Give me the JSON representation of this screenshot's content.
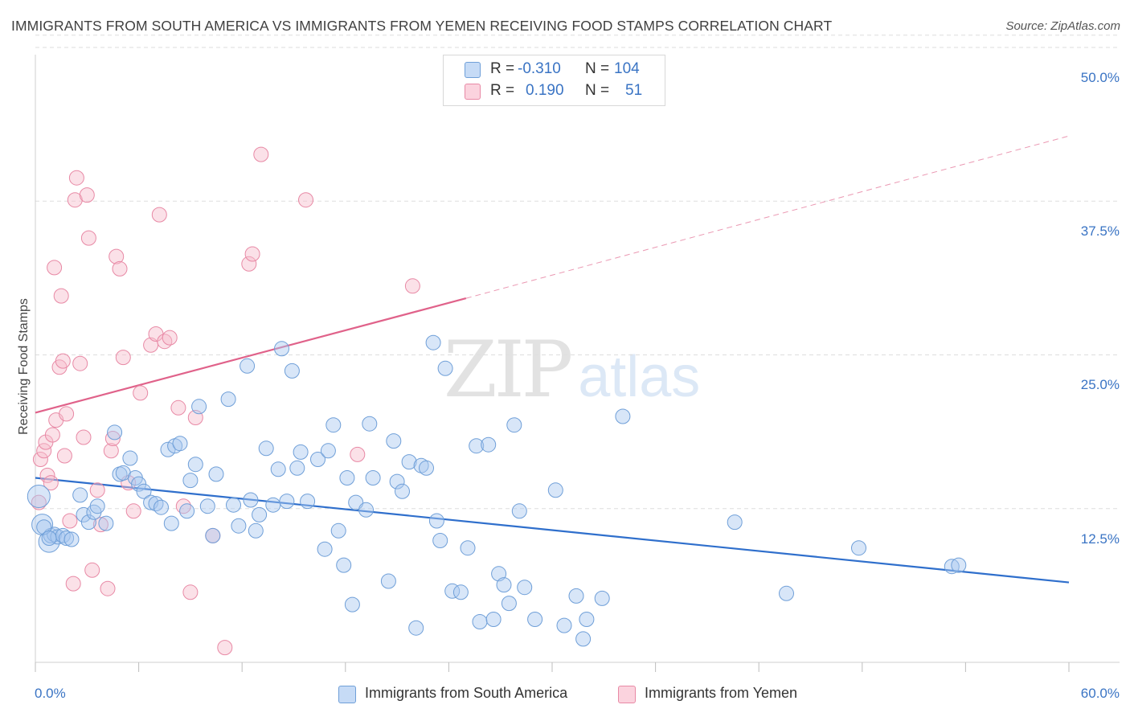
{
  "title": "IMMIGRANTS FROM SOUTH AMERICA VS IMMIGRANTS FROM YEMEN RECEIVING FOOD STAMPS CORRELATION CHART",
  "source": "Source: ZipAtlas.com",
  "watermark": {
    "zip": "ZIP",
    "atlas": "atlas"
  },
  "legend": {
    "rows": [
      {
        "r_label": "R =",
        "r_value": "-0.310",
        "n_label": "N =",
        "n_value": "104",
        "color": "#a9c8f0"
      },
      {
        "r_label": "R =",
        "r_value": "0.190",
        "n_label": "N =",
        "n_value": "51",
        "color": "#f7bccb"
      }
    ]
  },
  "bottom_legend": [
    {
      "label": "Immigrants from South America",
      "color": "#a9c8f0"
    },
    {
      "label": "Immigrants from Yemen",
      "color": "#f7bccb"
    }
  ],
  "chart_data": {
    "type": "scatter",
    "title": "IMMIGRANTS FROM SOUTH AMERICA VS IMMIGRANTS FROM YEMEN RECEIVING FOOD STAMPS CORRELATION CHART",
    "xlabel": "",
    "ylabel": "Receiving Food Stamps",
    "xlim": [
      0,
      60
    ],
    "ylim": [
      0,
      51
    ],
    "x_tick_labels": [
      "0.0%",
      "60.0%"
    ],
    "y_tick_labels": [
      "12.5%",
      "25.0%",
      "37.5%",
      "50.0%"
    ],
    "y_ticks": [
      12.5,
      25.0,
      37.5,
      50.0
    ],
    "grid": true,
    "legend_position": "top-center",
    "colors": {
      "blue_point": "#a9c8f0",
      "blue_edge": "#6f9fd8",
      "blue_line": "#2f6fcc",
      "pink_point": "#f7bccb",
      "pink_edge": "#e889a5",
      "pink_line": "#e0628a",
      "tick_text": "#3a74c4"
    },
    "series": [
      {
        "name": "Immigrants from South America",
        "r": -0.31,
        "n": 104,
        "trend": {
          "x": [
            0,
            60
          ],
          "y": [
            15.0,
            6.5
          ],
          "style": "solid"
        },
        "points": [
          [
            0.2,
            13.5
          ],
          [
            0.4,
            11.2
          ],
          [
            0.8,
            9.8
          ],
          [
            0.9,
            10.3
          ],
          [
            1.1,
            10.4
          ],
          [
            1.3,
            10.2
          ],
          [
            1.6,
            10.3
          ],
          [
            1.8,
            10.1
          ],
          [
            2.1,
            10.0
          ],
          [
            2.6,
            13.6
          ],
          [
            2.8,
            12.0
          ],
          [
            3.1,
            11.4
          ],
          [
            3.4,
            12.2
          ],
          [
            3.6,
            12.7
          ],
          [
            4.1,
            11.3
          ],
          [
            4.6,
            18.7
          ],
          [
            4.9,
            15.3
          ],
          [
            5.1,
            15.4
          ],
          [
            5.5,
            16.6
          ],
          [
            5.8,
            15.0
          ],
          [
            6.0,
            14.5
          ],
          [
            6.3,
            13.9
          ],
          [
            6.7,
            13.0
          ],
          [
            7.0,
            12.9
          ],
          [
            7.3,
            12.6
          ],
          [
            7.7,
            17.3
          ],
          [
            7.9,
            11.3
          ],
          [
            8.1,
            17.6
          ],
          [
            8.4,
            17.8
          ],
          [
            8.8,
            12.3
          ],
          [
            9.0,
            14.8
          ],
          [
            9.3,
            16.1
          ],
          [
            9.5,
            20.8
          ],
          [
            10.0,
            12.7
          ],
          [
            10.3,
            10.3
          ],
          [
            10.5,
            15.3
          ],
          [
            11.2,
            21.4
          ],
          [
            11.5,
            12.8
          ],
          [
            11.8,
            11.1
          ],
          [
            12.3,
            24.1
          ],
          [
            12.5,
            13.2
          ],
          [
            12.8,
            10.7
          ],
          [
            13.0,
            12.0
          ],
          [
            13.4,
            17.4
          ],
          [
            13.8,
            12.8
          ],
          [
            14.1,
            15.7
          ],
          [
            14.3,
            25.5
          ],
          [
            14.6,
            13.1
          ],
          [
            14.9,
            23.7
          ],
          [
            15.2,
            15.8
          ],
          [
            15.4,
            17.1
          ],
          [
            15.8,
            13.1
          ],
          [
            16.4,
            16.5
          ],
          [
            16.8,
            9.2
          ],
          [
            17.0,
            17.2
          ],
          [
            17.3,
            19.3
          ],
          [
            17.6,
            10.7
          ],
          [
            17.9,
            7.9
          ],
          [
            18.1,
            15.0
          ],
          [
            18.4,
            4.7
          ],
          [
            18.6,
            13.0
          ],
          [
            19.2,
            12.4
          ],
          [
            19.4,
            19.4
          ],
          [
            19.6,
            15.0
          ],
          [
            20.5,
            6.6
          ],
          [
            20.8,
            18.0
          ],
          [
            21.0,
            14.7
          ],
          [
            21.3,
            13.9
          ],
          [
            21.7,
            16.3
          ],
          [
            22.1,
            2.8
          ],
          [
            22.4,
            16.0
          ],
          [
            22.7,
            15.8
          ],
          [
            23.1,
            26.0
          ],
          [
            23.3,
            11.5
          ],
          [
            23.5,
            9.9
          ],
          [
            23.8,
            23.9
          ],
          [
            24.2,
            5.8
          ],
          [
            24.7,
            5.7
          ],
          [
            25.1,
            9.3
          ],
          [
            25.6,
            17.6
          ],
          [
            25.8,
            3.3
          ],
          [
            26.3,
            17.7
          ],
          [
            26.6,
            3.5
          ],
          [
            26.9,
            7.2
          ],
          [
            27.2,
            6.3
          ],
          [
            27.5,
            4.8
          ],
          [
            27.8,
            19.3
          ],
          [
            28.1,
            12.3
          ],
          [
            28.4,
            6.1
          ],
          [
            29.0,
            3.5
          ],
          [
            30.2,
            14.0
          ],
          [
            30.7,
            3.0
          ],
          [
            31.4,
            5.4
          ],
          [
            31.8,
            1.9
          ],
          [
            32.0,
            3.5
          ],
          [
            32.9,
            5.2
          ],
          [
            34.1,
            20.0
          ],
          [
            40.6,
            11.4
          ],
          [
            43.6,
            5.6
          ],
          [
            47.8,
            9.3
          ],
          [
            53.2,
            7.8
          ],
          [
            53.6,
            7.9
          ],
          [
            0.5,
            11.0
          ],
          [
            0.8,
            10.1
          ]
        ]
      },
      {
        "name": "Immigrants from Yemen",
        "r": 0.19,
        "n": 51,
        "trend": {
          "x": [
            0,
            25
          ],
          "y": [
            20.3,
            29.6
          ],
          "style": "solid",
          "extended_to": [
            60,
            42.8
          ],
          "extended_style": "dashed"
        },
        "points": [
          [
            0.2,
            13.0
          ],
          [
            0.3,
            16.5
          ],
          [
            0.5,
            17.2
          ],
          [
            0.6,
            17.9
          ],
          [
            0.7,
            15.2
          ],
          [
            0.9,
            14.6
          ],
          [
            1.0,
            18.5
          ],
          [
            1.1,
            32.1
          ],
          [
            1.2,
            19.7
          ],
          [
            1.4,
            24.0
          ],
          [
            1.5,
            29.8
          ],
          [
            1.6,
            24.5
          ],
          [
            1.7,
            16.8
          ],
          [
            1.8,
            20.2
          ],
          [
            2.0,
            11.5
          ],
          [
            2.2,
            6.4
          ],
          [
            2.3,
            37.6
          ],
          [
            2.4,
            39.4
          ],
          [
            2.6,
            24.3
          ],
          [
            2.8,
            18.3
          ],
          [
            3.0,
            38.0
          ],
          [
            3.1,
            34.5
          ],
          [
            3.3,
            7.5
          ],
          [
            3.6,
            14.0
          ],
          [
            3.8,
            11.2
          ],
          [
            4.2,
            6.0
          ],
          [
            4.4,
            17.2
          ],
          [
            4.5,
            18.2
          ],
          [
            4.7,
            33.0
          ],
          [
            4.9,
            32.0
          ],
          [
            5.1,
            24.8
          ],
          [
            5.4,
            14.6
          ],
          [
            5.7,
            12.3
          ],
          [
            6.1,
            21.9
          ],
          [
            6.7,
            25.8
          ],
          [
            7.0,
            26.7
          ],
          [
            7.2,
            36.4
          ],
          [
            7.5,
            26.1
          ],
          [
            7.8,
            26.4
          ],
          [
            8.3,
            20.7
          ],
          [
            8.6,
            12.7
          ],
          [
            9.0,
            5.7
          ],
          [
            9.3,
            19.9
          ],
          [
            10.3,
            10.3
          ],
          [
            11.0,
            1.2
          ],
          [
            12.4,
            32.4
          ],
          [
            12.6,
            33.2
          ],
          [
            13.1,
            41.3
          ],
          [
            15.7,
            37.6
          ],
          [
            18.7,
            16.9
          ],
          [
            21.9,
            30.6
          ]
        ]
      }
    ]
  }
}
